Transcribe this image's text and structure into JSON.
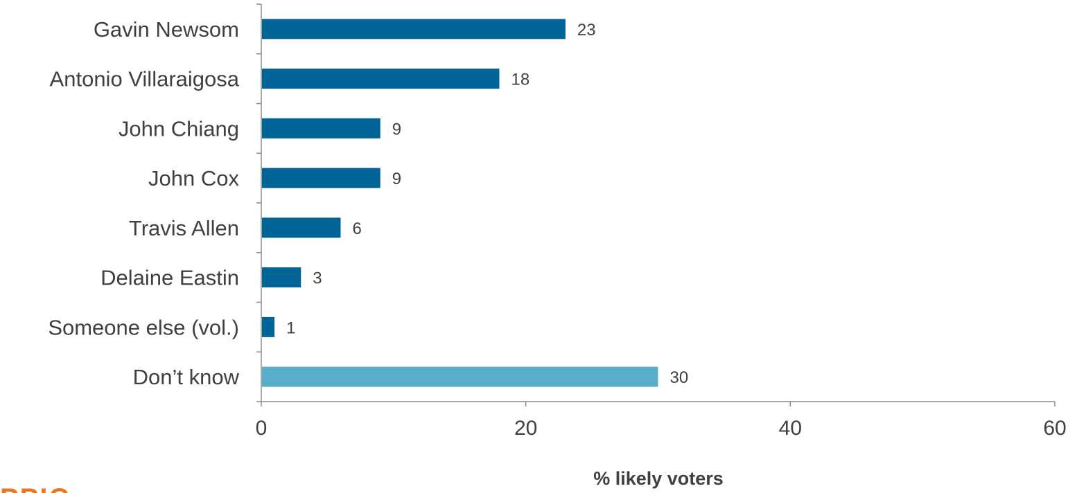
{
  "chart_data": {
    "type": "bar",
    "orientation": "horizontal",
    "categories": [
      "Gavin Newsom",
      "Antonio Villaraigosa",
      "John Chiang ",
      "John Cox",
      "Travis Allen",
      "Delaine Eastin",
      "Someone else (vol.)",
      "Don’t know"
    ],
    "values": [
      23,
      18,
      9,
      9,
      6,
      3,
      1,
      30
    ],
    "bar_colors": [
      "#006496",
      "#006496",
      "#006496",
      "#006496",
      "#006496",
      "#006496",
      "#006496",
      "#58aec8"
    ],
    "xlabel": "% likely voters",
    "xlim": [
      0,
      60
    ],
    "xticks": [
      0,
      20,
      40,
      60
    ],
    "grid": false,
    "legend": "none"
  },
  "logo_text": "PPIC"
}
